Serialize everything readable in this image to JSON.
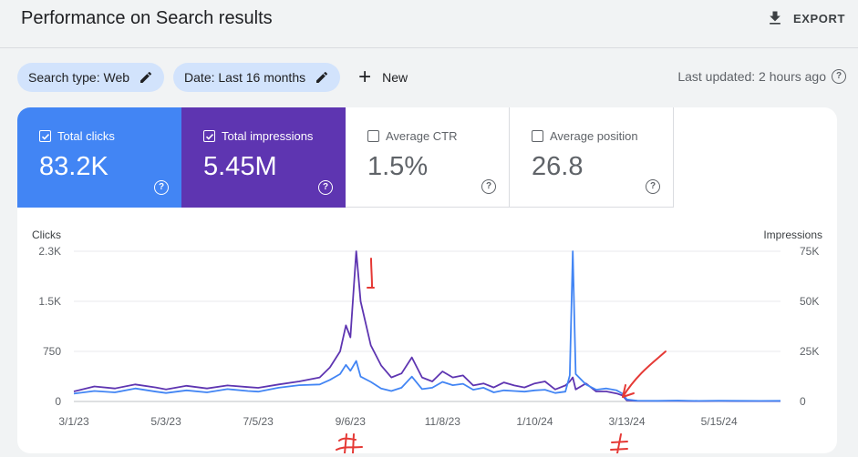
{
  "header": {
    "title": "Performance on Search results",
    "export_label": "EXPORT"
  },
  "filters": {
    "search_type": "Search type: Web",
    "date": "Date: Last 16 months",
    "new_label": "New"
  },
  "status": {
    "last_updated": "Last updated: 2 hours ago"
  },
  "metrics": {
    "clicks": {
      "label": "Total clicks",
      "value": "83.2K",
      "checked": true,
      "color": "#4285f4"
    },
    "impressions": {
      "label": "Total impressions",
      "value": "5.45M",
      "checked": true,
      "color": "#5e35b1"
    },
    "ctr": {
      "label": "Average CTR",
      "value": "1.5%",
      "checked": false
    },
    "position": {
      "label": "Average position",
      "value": "26.8",
      "checked": false
    }
  },
  "chart_data": {
    "type": "line",
    "left_axis": {
      "label": "Clicks",
      "ticks": [
        "0",
        "750",
        "1.5K",
        "2.3K"
      ],
      "range": [
        0,
        2300
      ]
    },
    "right_axis": {
      "label": "Impressions",
      "ticks": [
        "0",
        "25K",
        "50K",
        "75K"
      ],
      "range": [
        0,
        75000
      ]
    },
    "x_tick_labels": [
      "3/1/23",
      "5/3/23",
      "7/5/23",
      "9/6/23",
      "11/8/23",
      "1/10/24",
      "3/13/24",
      "5/15/24"
    ],
    "x": [
      "3/1/23",
      "3/15/23",
      "3/29/23",
      "4/12/23",
      "4/26/23",
      "5/3/23",
      "5/17/23",
      "5/31/23",
      "6/14/23",
      "6/28/23",
      "7/5/23",
      "7/19/23",
      "8/2/23",
      "8/16/23",
      "8/23/23",
      "8/30/23",
      "9/3/23",
      "9/6/23",
      "9/10/23",
      "9/13/23",
      "9/20/23",
      "9/27/23",
      "10/4/23",
      "10/11/23",
      "10/18/23",
      "10/25/23",
      "11/1/23",
      "11/8/23",
      "11/15/23",
      "11/22/23",
      "11/29/23",
      "12/6/23",
      "12/13/23",
      "12/20/23",
      "12/27/23",
      "1/3/24",
      "1/10/24",
      "1/17/24",
      "1/24/24",
      "1/31/24",
      "2/3/24",
      "2/5/24",
      "2/7/24",
      "2/14/24",
      "2/21/24",
      "2/28/24",
      "3/6/24",
      "3/10/24",
      "3/13/24",
      "3/20/24",
      "4/3/24",
      "4/17/24",
      "5/1/24",
      "5/15/24",
      "5/29/24",
      "6/12/24",
      "6/26/24"
    ],
    "series": [
      {
        "name": "Clicks",
        "axis": "left",
        "color": "#4285f4",
        "values": [
          120,
          160,
          140,
          200,
          150,
          130,
          170,
          140,
          190,
          160,
          150,
          210,
          250,
          260,
          330,
          420,
          560,
          470,
          620,
          380,
          300,
          200,
          160,
          210,
          380,
          190,
          210,
          300,
          250,
          270,
          180,
          210,
          140,
          170,
          160,
          150,
          170,
          180,
          130,
          150,
          400,
          2300,
          420,
          260,
          180,
          200,
          170,
          120,
          30,
          12,
          10,
          14,
          8,
          12,
          10,
          9,
          10
        ]
      },
      {
        "name": "Impressions",
        "axis": "right",
        "color": "#5e35b1",
        "values": [
          5000,
          7500,
          6500,
          8500,
          7000,
          6000,
          7800,
          6500,
          8000,
          7200,
          6800,
          8500,
          10000,
          12000,
          17000,
          25000,
          38000,
          32000,
          75000,
          50000,
          28000,
          18000,
          12000,
          14000,
          22000,
          12000,
          10000,
          15000,
          12000,
          13000,
          8000,
          9000,
          7000,
          9500,
          8000,
          7000,
          9000,
          10000,
          6000,
          8000,
          10000,
          12000,
          6000,
          9000,
          5000,
          5000,
          4000,
          3000,
          500,
          300,
          250,
          300,
          200,
          250,
          200,
          200,
          200
        ]
      }
    ]
  }
}
